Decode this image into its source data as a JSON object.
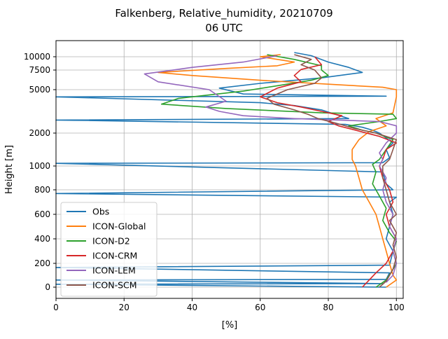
{
  "chart_data": {
    "type": "line",
    "title": "Falkenberg, Relative_humidity, 20210709",
    "subtitle": "06 UTC",
    "xlabel": "[%]",
    "ylabel": "Height [m]",
    "xlim": [
      0,
      102
    ],
    "x_ticks": [
      0,
      20,
      40,
      60,
      80,
      100
    ],
    "y_ticks": [
      {
        "label": "0",
        "value": 0
      },
      {
        "label": "200",
        "value": 200
      },
      {
        "label": "400",
        "value": 400
      },
      {
        "label": "600",
        "value": 600
      },
      {
        "label": "800",
        "value": 800
      },
      {
        "label": "1000",
        "value": 1000
      },
      {
        "label": "2000",
        "value": 2000
      },
      {
        "label": "5000",
        "value": 5000
      },
      {
        "label": "7500",
        "value": 7500
      },
      {
        "label": "10000",
        "value": 10000
      }
    ],
    "grid": true,
    "legend_position": "lower-left",
    "series": [
      {
        "name": "Obs",
        "color": "#1f77b4",
        "points": [
          [
            97,
            0
          ],
          [
            0,
            25
          ],
          [
            96,
            30
          ],
          [
            0,
            60
          ],
          [
            97,
            65
          ],
          [
            98,
            120
          ],
          [
            0,
            165
          ],
          [
            98,
            185
          ],
          [
            99,
            300
          ],
          [
            97,
            400
          ],
          [
            98,
            500
          ],
          [
            99,
            600
          ],
          [
            98,
            700
          ],
          [
            100,
            740
          ],
          [
            0,
            770
          ],
          [
            99,
            800
          ],
          [
            97,
            850
          ],
          [
            96,
            950
          ],
          [
            0,
            1080
          ],
          [
            96,
            1100
          ],
          [
            98,
            1250
          ],
          [
            97,
            1500
          ],
          [
            99,
            1700
          ],
          [
            95,
            2000
          ],
          [
            93,
            2200
          ],
          [
            90,
            2400
          ],
          [
            85,
            2600
          ],
          [
            0,
            2900
          ],
          [
            86,
            3000
          ],
          [
            82,
            3300
          ],
          [
            78,
            3600
          ],
          [
            70,
            3900
          ],
          [
            60,
            4100
          ],
          [
            0,
            4500
          ],
          [
            97,
            4550
          ],
          [
            55,
            4700
          ],
          [
            48,
            5200
          ],
          [
            60,
            5800
          ],
          [
            78,
            6500
          ],
          [
            90,
            7200
          ],
          [
            86,
            8000
          ],
          [
            80,
            9000
          ],
          [
            75,
            10500
          ],
          [
            70,
            12000
          ]
        ]
      },
      {
        "name": "ICON-Global",
        "color": "#ff7f0e",
        "points": [
          [
            97,
            0
          ],
          [
            100,
            60
          ],
          [
            99,
            100
          ],
          [
            98,
            200
          ],
          [
            97,
            300
          ],
          [
            96,
            400
          ],
          [
            95,
            500
          ],
          [
            94,
            600
          ],
          [
            92,
            700
          ],
          [
            90,
            800
          ],
          [
            89,
            900
          ],
          [
            88,
            1000
          ],
          [
            87,
            1200
          ],
          [
            87,
            1500
          ],
          [
            89,
            1800
          ],
          [
            92,
            2100
          ],
          [
            97,
            2500
          ],
          [
            94,
            3000
          ],
          [
            99,
            3400
          ],
          [
            100,
            4500
          ],
          [
            100,
            5000
          ],
          [
            96,
            5300
          ],
          [
            80,
            5700
          ],
          [
            60,
            6200
          ],
          [
            40,
            6800
          ],
          [
            30,
            7200
          ],
          [
            50,
            7800
          ],
          [
            65,
            8300
          ],
          [
            70,
            9000
          ],
          [
            60,
            10000
          ],
          [
            66,
            11000
          ]
        ]
      },
      {
        "name": "ICON-D2",
        "color": "#2ca02c",
        "points": [
          [
            94,
            0
          ],
          [
            97,
            60
          ],
          [
            99,
            150
          ],
          [
            100,
            200
          ],
          [
            99,
            300
          ],
          [
            100,
            380
          ],
          [
            98,
            450
          ],
          [
            96,
            550
          ],
          [
            97,
            650
          ],
          [
            95,
            750
          ],
          [
            93,
            850
          ],
          [
            94,
            950
          ],
          [
            93,
            1050
          ],
          [
            95,
            1200
          ],
          [
            97,
            1500
          ],
          [
            99,
            1800
          ],
          [
            94,
            2000
          ],
          [
            90,
            2200
          ],
          [
            86,
            2500
          ],
          [
            95,
            2800
          ],
          [
            100,
            3000
          ],
          [
            99,
            3300
          ],
          [
            78,
            3400
          ],
          [
            50,
            3700
          ],
          [
            31,
            4000
          ],
          [
            36,
            4400
          ],
          [
            55,
            4900
          ],
          [
            65,
            5500
          ],
          [
            75,
            6200
          ],
          [
            80,
            6800
          ],
          [
            78,
            7500
          ],
          [
            78,
            8300
          ],
          [
            70,
            9500
          ],
          [
            62,
            11000
          ]
        ]
      },
      {
        "name": "ICON-CRM",
        "color": "#d62728",
        "points": [
          [
            90,
            0
          ],
          [
            92,
            60
          ],
          [
            94,
            120
          ],
          [
            97,
            200
          ],
          [
            99,
            300
          ],
          [
            100,
            400
          ],
          [
            98,
            500
          ],
          [
            97,
            600
          ],
          [
            99,
            700
          ],
          [
            98,
            800
          ],
          [
            96,
            900
          ],
          [
            95,
            1000
          ],
          [
            96,
            1200
          ],
          [
            97,
            1500
          ],
          [
            100,
            1700
          ],
          [
            95,
            1900
          ],
          [
            88,
            2200
          ],
          [
            83,
            2500
          ],
          [
            80,
            2800
          ],
          [
            84,
            3200
          ],
          [
            78,
            3500
          ],
          [
            72,
            3800
          ],
          [
            65,
            4100
          ],
          [
            60,
            4500
          ],
          [
            65,
            5200
          ],
          [
            72,
            6000
          ],
          [
            70,
            6800
          ],
          [
            72,
            7600
          ],
          [
            78,
            8500
          ],
          [
            76,
            10000
          ]
        ]
      },
      {
        "name": "ICON-LEM",
        "color": "#9467bd",
        "points": [
          [
            97,
            40
          ],
          [
            99,
            100
          ],
          [
            100,
            200
          ],
          [
            99,
            300
          ],
          [
            100,
            400
          ],
          [
            98,
            500
          ],
          [
            99,
            600
          ],
          [
            97,
            700
          ],
          [
            96,
            800
          ],
          [
            97,
            900
          ],
          [
            95,
            1000
          ],
          [
            96,
            1200
          ],
          [
            95,
            1400
          ],
          [
            97,
            1700
          ],
          [
            100,
            2000
          ],
          [
            100,
            2500
          ],
          [
            95,
            2800
          ],
          [
            70,
            3000
          ],
          [
            55,
            3200
          ],
          [
            48,
            3500
          ],
          [
            44,
            3800
          ],
          [
            50,
            4200
          ],
          [
            45,
            5000
          ],
          [
            30,
            6000
          ],
          [
            26,
            7000
          ],
          [
            40,
            8000
          ],
          [
            55,
            9000
          ],
          [
            65,
            10500
          ]
        ]
      },
      {
        "name": "ICON-SCM",
        "color": "#8c564b",
        "points": [
          [
            95,
            0
          ],
          [
            97,
            50
          ],
          [
            99,
            150
          ],
          [
            100,
            250
          ],
          [
            99,
            350
          ],
          [
            100,
            450
          ],
          [
            98,
            550
          ],
          [
            100,
            600
          ],
          [
            98,
            700
          ],
          [
            97,
            800
          ],
          [
            96,
            900
          ],
          [
            96,
            1000
          ],
          [
            98,
            1200
          ],
          [
            99,
            1500
          ],
          [
            100,
            1800
          ],
          [
            94,
            2000
          ],
          [
            88,
            2300
          ],
          [
            82,
            2700
          ],
          [
            77,
            3000
          ],
          [
            74,
            3300
          ],
          [
            70,
            3600
          ],
          [
            64,
            4000
          ],
          [
            62,
            4400
          ],
          [
            68,
            5000
          ],
          [
            76,
            5800
          ],
          [
            78,
            6500
          ],
          [
            76,
            7500
          ],
          [
            72,
            8500
          ],
          [
            75,
            9500
          ],
          [
            70,
            11000
          ]
        ]
      }
    ]
  }
}
